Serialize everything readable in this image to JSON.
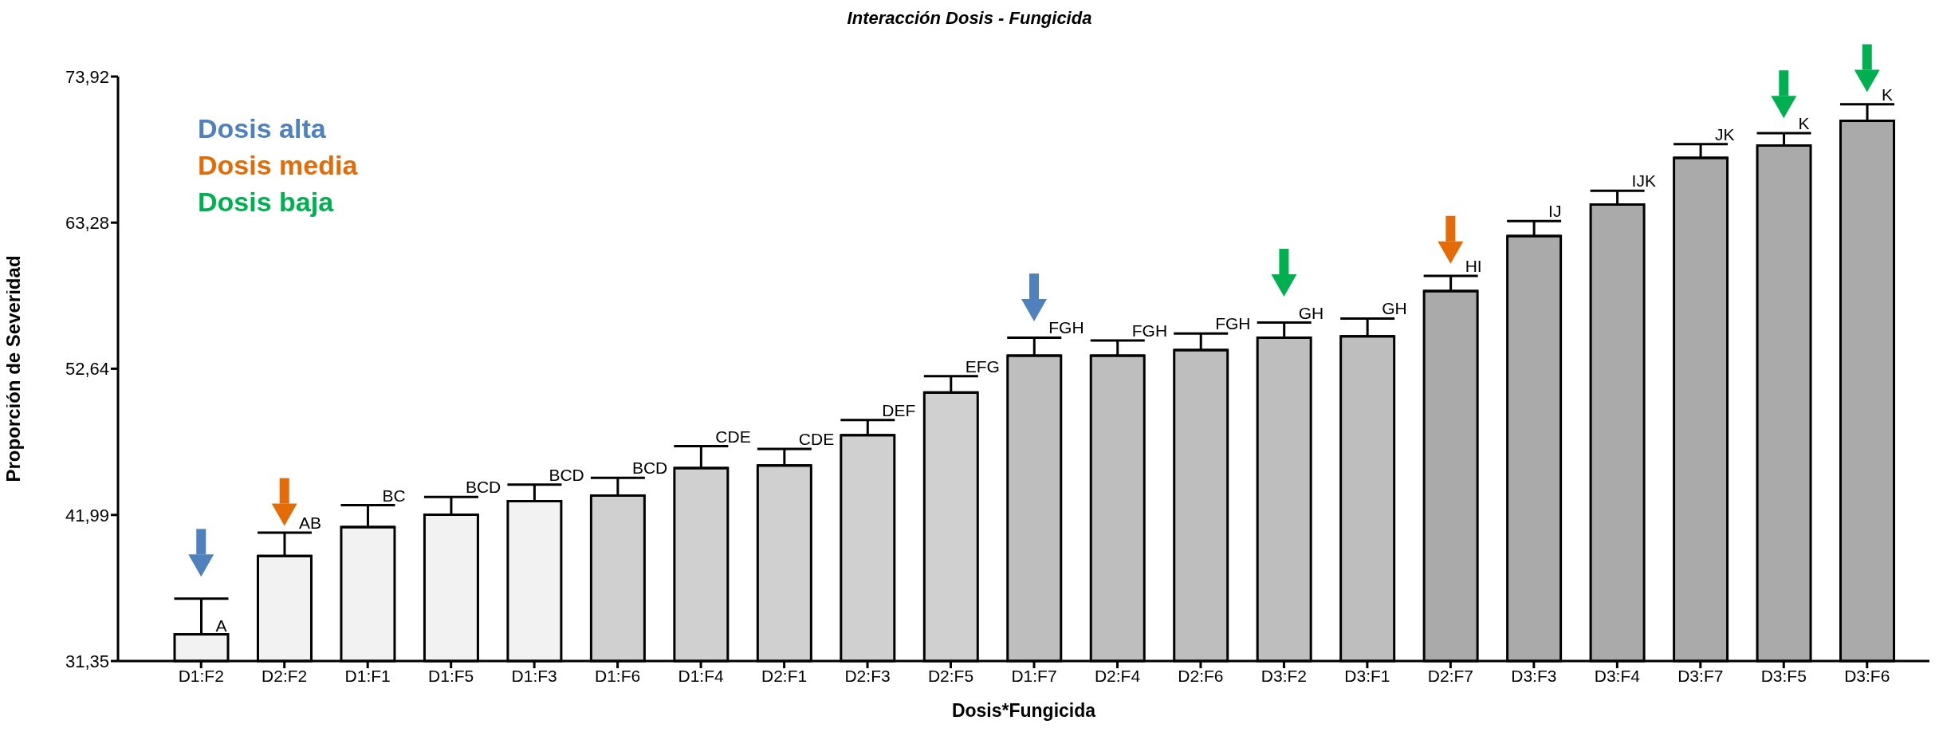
{
  "chart_data": {
    "type": "bar",
    "title": "Interacción Dosis - Fungicida",
    "xlabel": "Dosis*Fungicida",
    "ylabel": "Proporción de Severidad",
    "categories": [
      "D1:F2",
      "D2:F2",
      "D1:F1",
      "D1:F5",
      "D1:F3",
      "D1:F6",
      "D1:F4",
      "D2:F1",
      "D2:F3",
      "D2:F5",
      "D1:F7",
      "D2:F4",
      "D2:F6",
      "D3:F2",
      "D3:F1",
      "D2:F7",
      "D3:F3",
      "D3:F4",
      "D3:F7",
      "D3:F5",
      "D3:F6"
    ],
    "values": [
      33.3,
      39.0,
      41.1,
      42.0,
      43.0,
      43.4,
      45.4,
      45.6,
      47.8,
      50.9,
      53.6,
      53.6,
      54.0,
      54.9,
      55.0,
      58.3,
      62.3,
      64.6,
      68.0,
      68.9,
      70.7
    ],
    "errors": [
      [
        33.3,
        35.9
      ],
      [
        39.0,
        40.7
      ],
      [
        41.1,
        42.7
      ],
      [
        42.0,
        43.3
      ],
      [
        43.0,
        44.2
      ],
      [
        43.4,
        44.7
      ],
      [
        45.4,
        47.0
      ],
      [
        45.6,
        46.8
      ],
      [
        47.8,
        48.9
      ],
      [
        50.9,
        52.1
      ],
      [
        53.6,
        54.9
      ],
      [
        53.6,
        54.7
      ],
      [
        54.0,
        55.2
      ],
      [
        54.9,
        56.0
      ],
      [
        55.0,
        56.3
      ],
      [
        58.3,
        59.4
      ],
      [
        62.3,
        63.4
      ],
      [
        64.6,
        65.6
      ],
      [
        68.0,
        69.0
      ],
      [
        68.9,
        69.8
      ],
      [
        70.7,
        71.9
      ]
    ],
    "value_labels": [
      "A",
      "AB",
      "BC",
      "BCD",
      "BCD",
      "BCD",
      "CDE",
      "CDE",
      "DEF",
      "EFG",
      "FGH",
      "FGH",
      "FGH",
      "GH",
      "GH",
      "HI",
      "IJ",
      "IJK",
      "JK",
      "K",
      "K"
    ],
    "colors": [
      "#f2f2f2",
      "#f2f2f2",
      "#f2f2f2",
      "#f2f2f2",
      "#f2f2f2",
      "#d0d0d0",
      "#d0d0d0",
      "#d0d0d0",
      "#d0d0d0",
      "#d0d0d0",
      "#bebebe",
      "#bebebe",
      "#bebebe",
      "#bebebe",
      "#bebebe",
      "#aaaaaa",
      "#aaaaaa",
      "#aaaaaa",
      "#aaaaaa",
      "#aaaaaa",
      "#aaaaaa"
    ],
    "series": [
      {
        "type": "scatter",
        "name": "Dosis alta",
        "color": "#4f81bd",
        "x": [
          "D1:F2",
          "D1:F7"
        ],
        "values": [
          38.3,
          56.9
        ]
      },
      {
        "type": "scatter",
        "name": "Dosis media",
        "color": "#e36c09",
        "x": [
          "D2:F2",
          "D2:F7"
        ],
        "values": [
          42.0,
          61.1
        ]
      },
      {
        "type": "scatter",
        "name": "Dosis baja",
        "color": "#00b050",
        "x": [
          "D3:F2",
          "D3:F5",
          "D3:F6"
        ],
        "values": [
          58.7,
          71.7,
          73.6
        ]
      }
    ],
    "marker": "triangle",
    "ylim": [
      31.35,
      73.92
    ],
    "yticks": [
      {
        "value": 31.35,
        "label": "31,35"
      },
      {
        "value": 41.99,
        "label": "41,99"
      },
      {
        "value": 52.64,
        "label": "52,64"
      },
      {
        "value": 63.28,
        "label": "63,28"
      },
      {
        "value": 73.92,
        "label": "73,92"
      }
    ]
  }
}
